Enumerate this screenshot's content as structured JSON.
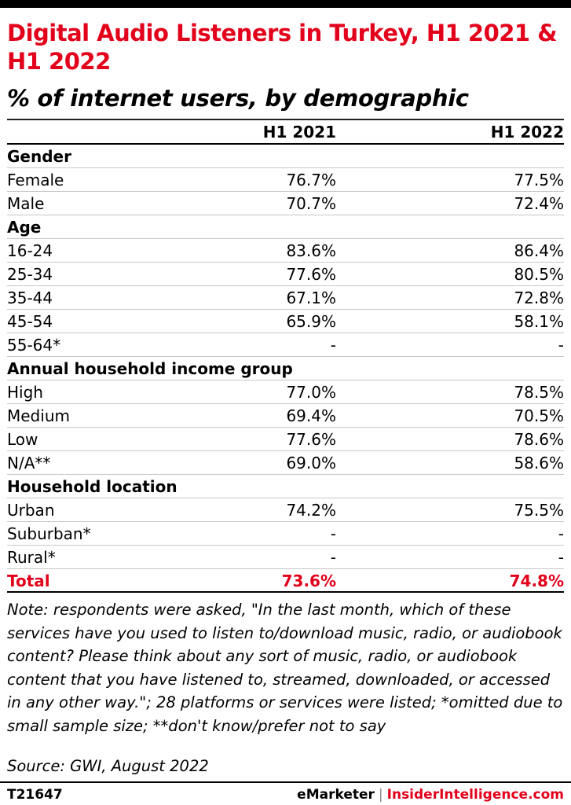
{
  "header": {
    "title": "Digital Audio Listeners in Turkey, H1 2021 & H1 2022",
    "subtitle": "% of internet users, by demographic"
  },
  "chart_data": {
    "type": "table",
    "columns": [
      "",
      "H1 2021",
      "H1 2022"
    ],
    "rows": [
      {
        "kind": "section",
        "label": "Gender"
      },
      {
        "kind": "data",
        "label": "Female",
        "h1_2021": "76.7%",
        "h1_2022": "77.5%"
      },
      {
        "kind": "data",
        "label": "Male",
        "h1_2021": "70.7%",
        "h1_2022": "72.4%"
      },
      {
        "kind": "section",
        "label": "Age"
      },
      {
        "kind": "data",
        "label": "16-24",
        "h1_2021": "83.6%",
        "h1_2022": "86.4%"
      },
      {
        "kind": "data",
        "label": "25-34",
        "h1_2021": "77.6%",
        "h1_2022": "80.5%"
      },
      {
        "kind": "data",
        "label": "35-44",
        "h1_2021": "67.1%",
        "h1_2022": "72.8%"
      },
      {
        "kind": "data",
        "label": "45-54",
        "h1_2021": "65.9%",
        "h1_2022": "58.1%"
      },
      {
        "kind": "data",
        "label": "55-64*",
        "h1_2021": "-",
        "h1_2022": "-"
      },
      {
        "kind": "section",
        "label": "Annual household income group"
      },
      {
        "kind": "data",
        "label": "High",
        "h1_2021": "77.0%",
        "h1_2022": "78.5%"
      },
      {
        "kind": "data",
        "label": "Medium",
        "h1_2021": "69.4%",
        "h1_2022": "70.5%"
      },
      {
        "kind": "data",
        "label": "Low",
        "h1_2021": "77.6%",
        "h1_2022": "78.6%"
      },
      {
        "kind": "data",
        "label": "N/A**",
        "h1_2021": "69.0%",
        "h1_2022": "58.6%"
      },
      {
        "kind": "section",
        "label": "Household location"
      },
      {
        "kind": "data",
        "label": "Urban",
        "h1_2021": "74.2%",
        "h1_2022": "75.5%"
      },
      {
        "kind": "data",
        "label": "Suburban*",
        "h1_2021": "-",
        "h1_2022": "-"
      },
      {
        "kind": "data",
        "label": "Rural*",
        "h1_2021": "-",
        "h1_2022": "-"
      },
      {
        "kind": "total",
        "label": "Total",
        "h1_2021": "73.6%",
        "h1_2022": "74.8%"
      }
    ]
  },
  "footer": {
    "note": "Note: respondents were asked, \"In the last month, which of these services have you used to listen to/download music, radio, or audiobook content? Please think about any sort of music, radio, or audiobook content that you have listened to, streamed, downloaded, or accessed in any other way.\"; 28 platforms or services were listed; *omitted due to small sample size; **don't know/prefer not to say",
    "source": "Source: GWI, August 2022",
    "chart_id": "T21647",
    "brand_left": "eMarketer",
    "brand_separator": "|",
    "brand_right": "InsiderIntelligence.com"
  },
  "colors": {
    "accent": "#e2001a",
    "text": "#000000"
  }
}
